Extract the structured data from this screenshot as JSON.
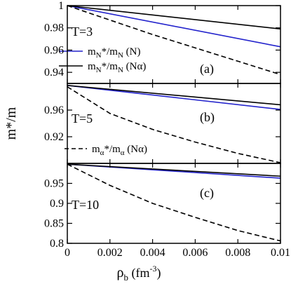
{
  "chart_data": [
    {
      "type": "line",
      "panel_label": "(a)",
      "annotation": "T=3",
      "xlim": [
        0,
        0.01
      ],
      "ylim": [
        0.93,
        1.0
      ],
      "yticks": [
        0.94,
        0.96,
        0.98,
        1
      ],
      "ytick_labels": [
        "0.94",
        "0.96",
        "0.98",
        "1"
      ],
      "series": [
        {
          "name": "m_N*/m_N (N)",
          "color": "#2222cc",
          "dash": "solid",
          "x": [
            0,
            0.01
          ],
          "y": [
            1.0,
            0.963
          ]
        },
        {
          "name": "m_N*/m_N (Nα)",
          "color": "#000000",
          "dash": "solid",
          "x": [
            0,
            0.01
          ],
          "y": [
            1.0,
            0.979
          ]
        },
        {
          "color": "#000000",
          "dash": "dashed",
          "x": [
            0,
            0.002,
            0.004,
            0.006,
            0.008,
            0.01
          ],
          "y": [
            1.0,
            0.987,
            0.974,
            0.962,
            0.95,
            0.938
          ]
        }
      ]
    },
    {
      "type": "line",
      "panel_label": "(b)",
      "annotation": "T=5",
      "xlim": [
        0,
        0.01
      ],
      "ylim": [
        0.88,
        1.0
      ],
      "yticks": [
        0.92,
        0.96
      ],
      "ytick_labels": [
        "0.92",
        "0.96"
      ],
      "series": [
        {
          "color": "#2222cc",
          "dash": "solid",
          "x": [
            0,
            0.01
          ],
          "y": [
            0.997,
            0.961
          ]
        },
        {
          "color": "#000000",
          "dash": "solid",
          "x": [
            0,
            0.01
          ],
          "y": [
            0.997,
            0.968
          ]
        },
        {
          "name": "m_α*/m_α (Nα)",
          "color": "#000000",
          "dash": "dashed",
          "x": [
            0,
            0.001,
            0.002,
            0.004,
            0.006,
            0.008,
            0.01
          ],
          "y": [
            0.995,
            0.975,
            0.955,
            0.931,
            0.912,
            0.895,
            0.881
          ]
        }
      ]
    },
    {
      "type": "line",
      "panel_label": "(c)",
      "annotation": "T=10",
      "xlim": [
        0,
        0.01
      ],
      "ylim": [
        0.8,
        1.0
      ],
      "xticks": [
        0,
        0.002,
        0.004,
        0.006,
        0.008,
        0.01
      ],
      "xtick_labels": [
        "0",
        "0.002",
        "0.004",
        "0.006",
        "0.008",
        "0.01"
      ],
      "yticks": [
        0.8,
        0.85,
        0.9,
        0.95
      ],
      "ytick_labels": [
        "0.8",
        "0.85",
        "0.9",
        "0.95"
      ],
      "series": [
        {
          "color": "#2222cc",
          "dash": "solid",
          "x": [
            0,
            0.01
          ],
          "y": [
            0.998,
            0.963
          ]
        },
        {
          "color": "#000000",
          "dash": "solid",
          "x": [
            0,
            0.01
          ],
          "y": [
            0.998,
            0.968
          ]
        },
        {
          "color": "#000000",
          "dash": "dashed",
          "x": [
            0,
            0.002,
            0.004,
            0.006,
            0.008,
            0.01
          ],
          "y": [
            0.998,
            0.945,
            0.9,
            0.865,
            0.832,
            0.806
          ]
        }
      ]
    }
  ],
  "axes": {
    "ylabel": "m*/m",
    "xlabel": "ρ",
    "xlabel_sub": "b",
    "xlabel_unit": " (fm",
    "xlabel_exp": "-3",
    "xlabel_close": ")"
  },
  "legend": {
    "a1_main": "m",
    "a1_sub1": "N",
    "a1_mid": "*/m",
    "a1_sub2": "N",
    "a1_tail": " (N)",
    "a2_main": "m",
    "a2_sub1": "N",
    "a2_mid": "*/m",
    "a2_sub2": "N",
    "a2_tail": " (Nα)",
    "b1_main": "m",
    "b1_sub1": "α",
    "b1_mid": "*/m",
    "b1_sub2": "α",
    "b1_tail": " (Nα)"
  }
}
